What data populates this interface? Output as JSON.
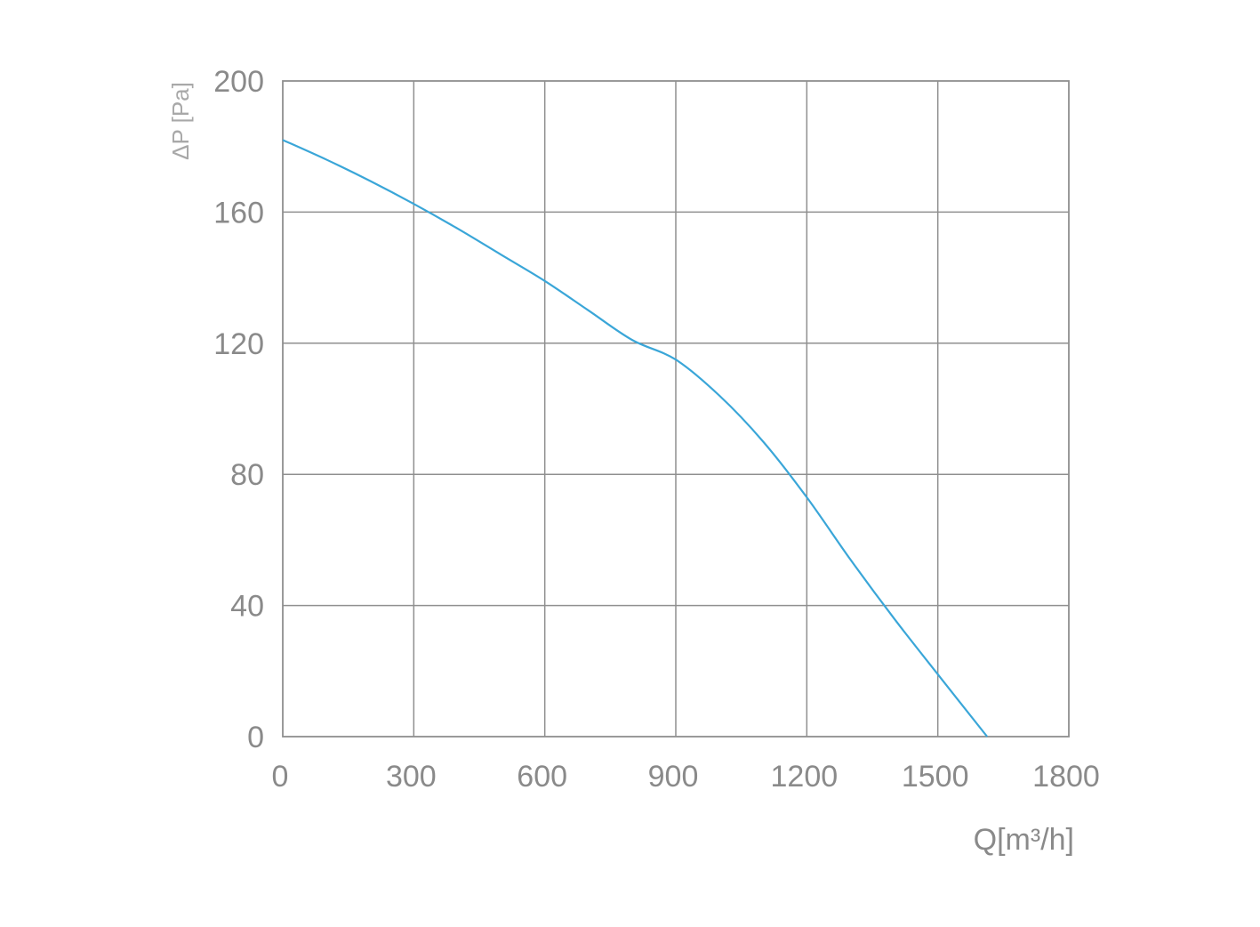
{
  "chart_data": {
    "type": "line",
    "title": "",
    "xlabel": "Q[m³/h]",
    "ylabel": "ΔP [Pa]",
    "xlim": [
      0,
      1800
    ],
    "ylim": [
      0,
      200
    ],
    "xticks": [
      0,
      300,
      600,
      900,
      1200,
      1500,
      1800
    ],
    "yticks": [
      0,
      40,
      80,
      120,
      160,
      200
    ],
    "grid": true,
    "legend": "none",
    "series": [
      {
        "color": "#3aa6d8",
        "x": [
          0,
          100,
          200,
          300,
          400,
          500,
          600,
          700,
          800,
          900,
          1000,
          1100,
          1200,
          1300,
          1400,
          1500,
          1613
        ],
        "y": [
          182,
          176,
          169.5,
          162.5,
          155,
          147,
          139,
          130,
          121,
          115,
          104,
          90,
          73,
          54,
          36,
          19,
          0
        ]
      }
    ],
    "colors": {
      "grid": "#8f8f8f",
      "text": "#8a8a8a",
      "series": "#3aa6d8"
    }
  }
}
